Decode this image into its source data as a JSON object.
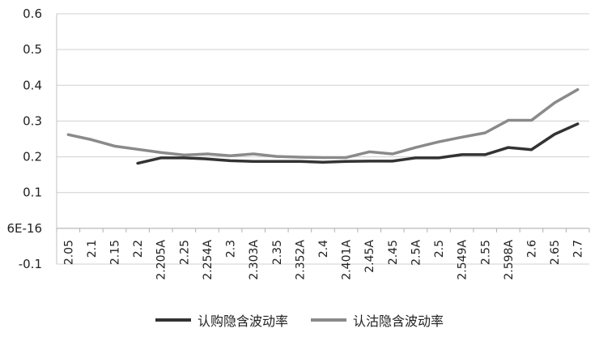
{
  "chart_data": {
    "type": "line",
    "title": "",
    "xlabel": "",
    "ylabel": "",
    "ylim": [
      -0.1,
      0.6
    ],
    "y_ticks": [
      -0.1,
      0,
      0.1,
      0.2,
      0.3,
      0.4,
      0.5,
      0.6
    ],
    "y_tick_labels": [
      "-0.1",
      "6E-16",
      "0.1",
      "0.2",
      "0.3",
      "0.4",
      "0.5",
      "0.6"
    ],
    "categories": [
      "2.05",
      "2.1",
      "2.15",
      "2.2",
      "2.205A",
      "2.25",
      "2.254A",
      "2.3",
      "2.303A",
      "2.35",
      "2.352A",
      "2.4",
      "2.401A",
      "2.45A",
      "2.45",
      "2.5A",
      "2.5",
      "2.549A",
      "2.55",
      "2.598A",
      "2.6",
      "2.65",
      "2.7"
    ],
    "grid": "horizontal",
    "legend_position": "bottom",
    "series": [
      {
        "name": "认购隐含波动率",
        "color": "#333333",
        "values": [
          null,
          null,
          null,
          0.182,
          0.197,
          0.197,
          0.194,
          0.189,
          0.187,
          0.187,
          0.187,
          0.185,
          0.187,
          0.188,
          0.188,
          0.197,
          0.197,
          0.206,
          0.206,
          0.226,
          0.22,
          0.263,
          0.292
        ]
      },
      {
        "name": "认沽隐含波动率",
        "color": "#8a8a8a",
        "values": [
          0.262,
          0.248,
          0.23,
          0.221,
          0.212,
          0.205,
          0.208,
          0.203,
          0.208,
          0.201,
          0.199,
          0.198,
          0.198,
          0.214,
          0.208,
          0.226,
          0.242,
          0.255,
          0.267,
          0.302,
          0.302,
          0.351,
          0.388
        ]
      }
    ]
  }
}
